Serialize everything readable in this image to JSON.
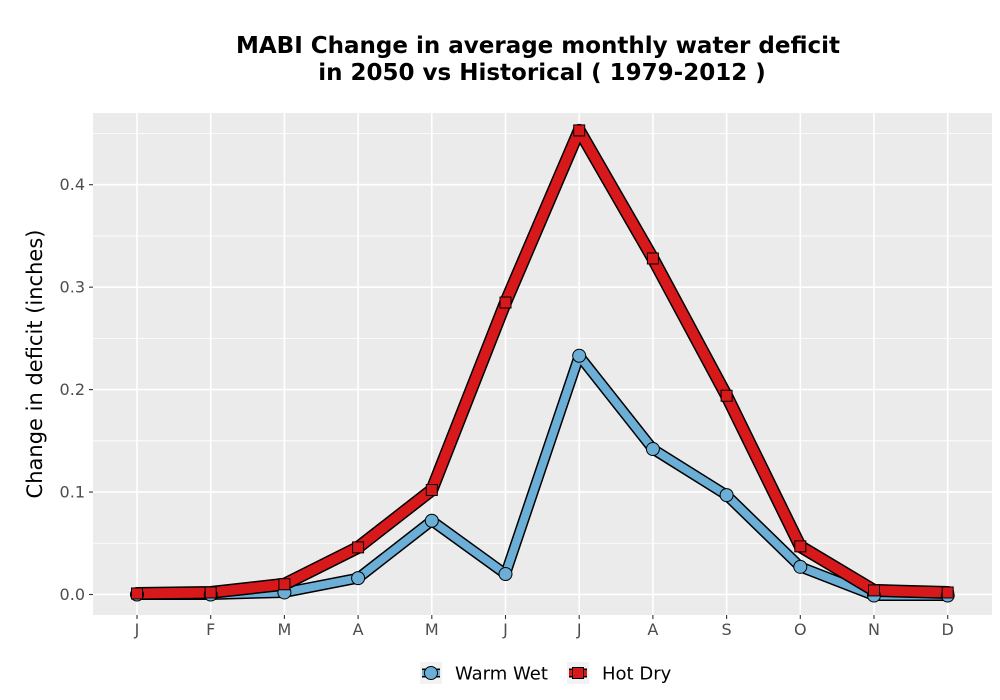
{
  "chart_data": {
    "type": "line",
    "title_line1": "MABI  Change in average monthly water deficit",
    "title_line2": "in 2050 vs Historical ( 1979-2012 )",
    "xlabel": "",
    "ylabel": "Change in deficit (inches)",
    "categories": [
      "J",
      "F",
      "M",
      "A",
      "M",
      "J",
      "J",
      "A",
      "S",
      "O",
      "N",
      "D"
    ],
    "ylim": [
      -0.02,
      0.47
    ],
    "yticks": [
      0.0,
      0.1,
      0.2,
      0.3,
      0.4
    ],
    "ytick_labels": [
      "0.0",
      "0.1",
      "0.2",
      "0.3",
      "0.4"
    ],
    "grid": true,
    "legend_position": "bottom",
    "series": [
      {
        "name": "Warm Wet",
        "color": "#6baed6",
        "marker": "circle",
        "values": [
          0.0,
          0.0,
          0.002,
          0.016,
          0.072,
          0.02,
          0.233,
          0.142,
          0.097,
          0.027,
          -0.001,
          -0.001
        ]
      },
      {
        "name": "Hot Dry",
        "color": "#d7191c",
        "marker": "square",
        "values": [
          0.001,
          0.002,
          0.01,
          0.046,
          0.102,
          0.285,
          0.453,
          0.328,
          0.194,
          0.047,
          0.004,
          0.002
        ]
      }
    ]
  }
}
